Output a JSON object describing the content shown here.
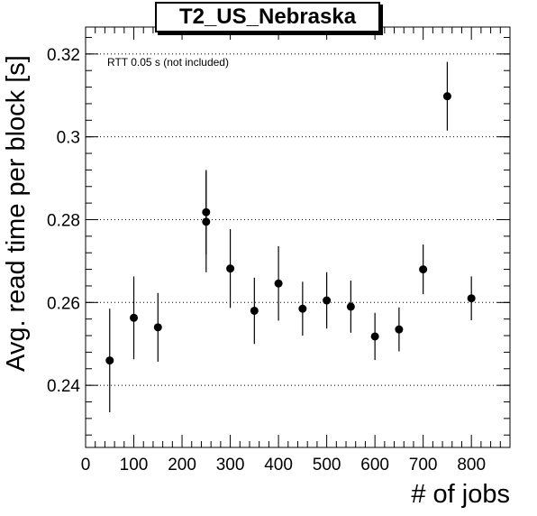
{
  "chart_data": {
    "type": "scatter",
    "title": "T2_US_Nebraska",
    "xlabel": "# of jobs",
    "ylabel": "Avg. read time per block [s]",
    "annotation": "RTT 0.05 s (not included)",
    "xlim": [
      0,
      880
    ],
    "ylim": [
      0.225,
      0.3265
    ],
    "x_ticks": [
      0,
      100,
      200,
      300,
      400,
      500,
      600,
      700,
      800
    ],
    "y_ticks": [
      0.24,
      0.26,
      0.28,
      0.3,
      0.32
    ],
    "y_tick_labels": [
      "0.24",
      "0.26",
      "0.28",
      "0.3",
      "0.32"
    ],
    "grid": "horizontal-dotted",
    "marker_color": "#000000",
    "points": [
      {
        "x": 50,
        "y": 0.246,
        "err": 0.0125
      },
      {
        "x": 100,
        "y": 0.2563,
        "err": 0.01
      },
      {
        "x": 150,
        "y": 0.254,
        "err": 0.0083
      },
      {
        "x": 250,
        "y": 0.2818,
        "err": 0.0102
      },
      {
        "x": 250,
        "y": 0.2795,
        "err": 0.0122
      },
      {
        "x": 300,
        "y": 0.2682,
        "err": 0.0095
      },
      {
        "x": 350,
        "y": 0.258,
        "err": 0.008
      },
      {
        "x": 400,
        "y": 0.2646,
        "err": 0.009
      },
      {
        "x": 450,
        "y": 0.2585,
        "err": 0.0065
      },
      {
        "x": 500,
        "y": 0.2605,
        "err": 0.0068
      },
      {
        "x": 550,
        "y": 0.259,
        "err": 0.0063
      },
      {
        "x": 600,
        "y": 0.2518,
        "err": 0.0057
      },
      {
        "x": 650,
        "y": 0.2535,
        "err": 0.0053
      },
      {
        "x": 700,
        "y": 0.268,
        "err": 0.006
      },
      {
        "x": 750,
        "y": 0.3098,
        "err": 0.0083
      },
      {
        "x": 800,
        "y": 0.261,
        "err": 0.0053
      }
    ]
  }
}
